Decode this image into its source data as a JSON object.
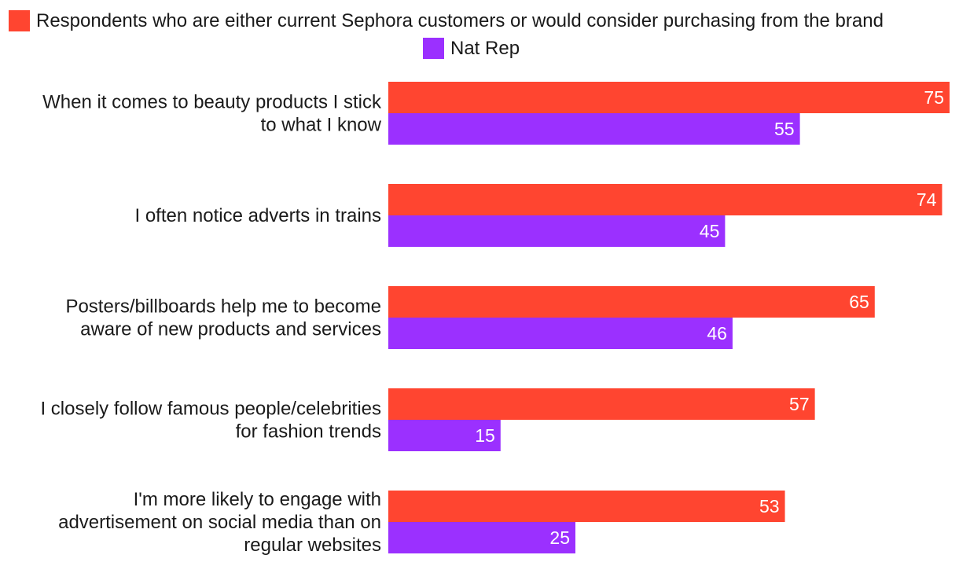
{
  "chart_data": {
    "type": "bar",
    "orientation": "horizontal",
    "title": "",
    "xlabel": "",
    "ylabel": "",
    "xlim": [
      0,
      75
    ],
    "grid": false,
    "legend_position": "top",
    "categories": [
      [
        "When it comes to beauty products I stick",
        "to what I know"
      ],
      [
        "I often notice adverts in trains"
      ],
      [
        "Posters/billboards help me to become",
        "aware of new products and services"
      ],
      [
        "I closely follow famous people/celebrities",
        "for fashion trends"
      ],
      [
        "I'm more likely to engage with",
        "advertisement on social media than on",
        "regular websites"
      ]
    ],
    "series": [
      {
        "name": "Respondents who are either current Sephora customers or would consider purchasing from the brand",
        "color": "#ff4530",
        "values": [
          75,
          74,
          65,
          57,
          53
        ]
      },
      {
        "name": "Nat Rep",
        "color": "#9b30ff",
        "values": [
          55,
          45,
          46,
          15,
          25
        ]
      }
    ]
  }
}
